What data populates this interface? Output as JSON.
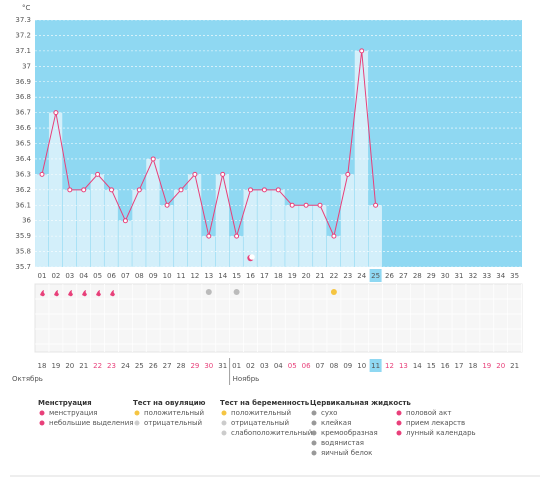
{
  "chart_data": {
    "type": "line",
    "unit": "°C",
    "categories": [
      "01",
      "02",
      "03",
      "04",
      "05",
      "06",
      "07",
      "08",
      "09",
      "10",
      "11",
      "12",
      "13",
      "14",
      "15",
      "16",
      "17",
      "18",
      "19",
      "20",
      "21",
      "22",
      "23",
      "24",
      "25",
      "26",
      "27",
      "28",
      "29",
      "30",
      "31",
      "32",
      "33",
      "34",
      "35"
    ],
    "values": [
      36.3,
      36.7,
      36.2,
      36.2,
      36.3,
      36.2,
      36.0,
      36.2,
      36.4,
      36.1,
      36.2,
      36.3,
      35.9,
      36.3,
      35.9,
      36.2,
      36.2,
      36.2,
      36.1,
      36.1,
      36.1,
      35.9,
      36.3,
      37.1,
      36.1,
      null,
      null,
      null,
      null,
      null,
      null,
      null,
      null,
      null,
      null
    ],
    "color": "#e8407a",
    "ylim": [
      35.7,
      37.3
    ],
    "yticks": [
      35.7,
      35.8,
      35.9,
      36,
      36.1,
      36.2,
      36.3,
      36.4,
      36.5,
      36.6,
      36.7,
      36.8,
      36.9,
      37,
      37.1,
      37.2,
      37.3
    ],
    "grid": true,
    "dates": [
      "18",
      "19",
      "20",
      "21",
      "22",
      "23",
      "24",
      "25",
      "26",
      "27",
      "28",
      "29",
      "30",
      "31",
      "01",
      "02",
      "03",
      "04",
      "05",
      "06",
      "07",
      "08",
      "09",
      "10",
      "11",
      "12",
      "13",
      "14",
      "15",
      "16",
      "17",
      "18",
      "19",
      "20",
      "21"
    ],
    "weekend": [
      false,
      false,
      false,
      false,
      true,
      true,
      false,
      false,
      false,
      false,
      false,
      true,
      true,
      false,
      false,
      false,
      false,
      false,
      true,
      true,
      false,
      false,
      false,
      false,
      false,
      true,
      true,
      false,
      false,
      false,
      false,
      false,
      true,
      true,
      false
    ],
    "months": [
      "Октябрь",
      "Ноябрь"
    ],
    "legend": [
      {
        "title": "Менструация",
        "items": [
          "менструация",
          "небольшие выделения"
        ]
      },
      {
        "title": "Тест на овуляцию",
        "items": [
          "положительный",
          "отрицательный"
        ]
      },
      {
        "title": "Тест на беременность",
        "items": [
          "положительный",
          "отрицательный",
          "слабоположительный"
        ]
      },
      {
        "title": "Цервикальная жидкость",
        "items": [
          "сухо",
          "клейкая",
          "кремообразная",
          "водянистая",
          "яичный белок"
        ]
      },
      {
        "items": [
          "половой акт",
          "прием лекарств",
          "лунный календарь"
        ]
      }
    ]
  }
}
